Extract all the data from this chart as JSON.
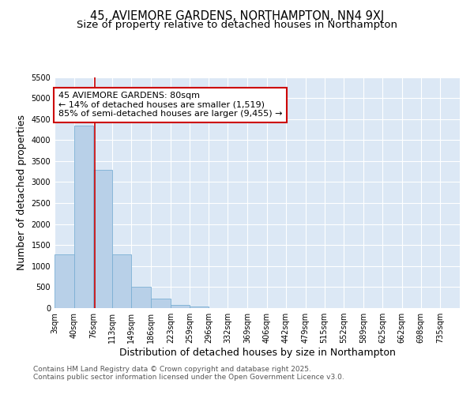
{
  "title": "45, AVIEMORE GARDENS, NORTHAMPTON, NN4 9XJ",
  "subtitle": "Size of property relative to detached houses in Northampton",
  "xlabel": "Distribution of detached houses by size in Northampton",
  "ylabel": "Number of detached properties",
  "bin_labels": [
    "3sqm",
    "40sqm",
    "76sqm",
    "113sqm",
    "149sqm",
    "186sqm",
    "223sqm",
    "259sqm",
    "296sqm",
    "332sqm",
    "369sqm",
    "406sqm",
    "442sqm",
    "479sqm",
    "515sqm",
    "552sqm",
    "589sqm",
    "625sqm",
    "662sqm",
    "698sqm",
    "735sqm"
  ],
  "bin_edges": [
    3,
    40,
    76,
    113,
    149,
    186,
    223,
    259,
    296,
    332,
    369,
    406,
    442,
    479,
    515,
    552,
    589,
    625,
    662,
    698,
    735
  ],
  "bar_heights": [
    1270,
    4350,
    3300,
    1280,
    500,
    230,
    80,
    30,
    0,
    0,
    0,
    0,
    0,
    0,
    0,
    0,
    0,
    0,
    0,
    0
  ],
  "bar_color": "#b8d0e8",
  "bar_edge_color": "#7bafd4",
  "property_size": 80,
  "property_line_color": "#cc0000",
  "annotation_text": "45 AVIEMORE GARDENS: 80sqm\n← 14% of detached houses are smaller (1,519)\n85% of semi-detached houses are larger (9,455) →",
  "annotation_box_color": "#cc0000",
  "ylim": [
    0,
    5500
  ],
  "yticks": [
    0,
    500,
    1000,
    1500,
    2000,
    2500,
    3000,
    3500,
    4000,
    4500,
    5000,
    5500
  ],
  "bg_color": "#dce8f5",
  "grid_color": "#ffffff",
  "footer_line1": "Contains HM Land Registry data © Crown copyright and database right 2025.",
  "footer_line2": "Contains public sector information licensed under the Open Government Licence v3.0.",
  "title_fontsize": 10.5,
  "subtitle_fontsize": 9.5,
  "axis_label_fontsize": 9,
  "tick_fontsize": 7,
  "footer_fontsize": 6.5,
  "annotation_fontsize": 8
}
